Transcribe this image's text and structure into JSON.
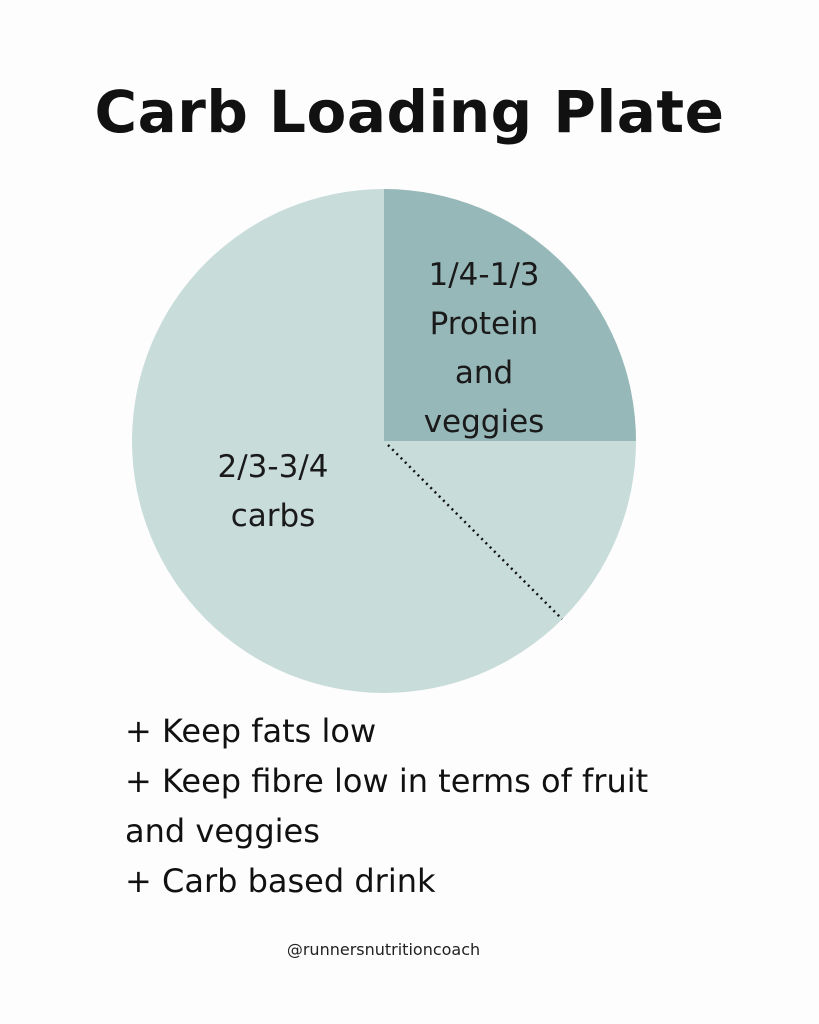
{
  "title": "Carb Loading Plate",
  "chart_data": {
    "type": "pie",
    "slices": [
      {
        "label_lines": [
          "1/4-1/3",
          "Protein",
          "and",
          "veggies"
        ],
        "fraction": 0.25,
        "color": "#97b8b9"
      },
      {
        "label_lines": [
          "2/3-3/4",
          "carbs"
        ],
        "fraction": 0.75,
        "color": "#c8dcda"
      }
    ],
    "divider": {
      "style": "dotted",
      "color": "#111111",
      "fraction": 0.125
    }
  },
  "notes": [
    "+ Keep fats low",
    "+ Keep fibre low in terms of fruit",
    "and veggies",
    "+ Carb based drink"
  ],
  "handle": "@runnersnutritioncoach"
}
